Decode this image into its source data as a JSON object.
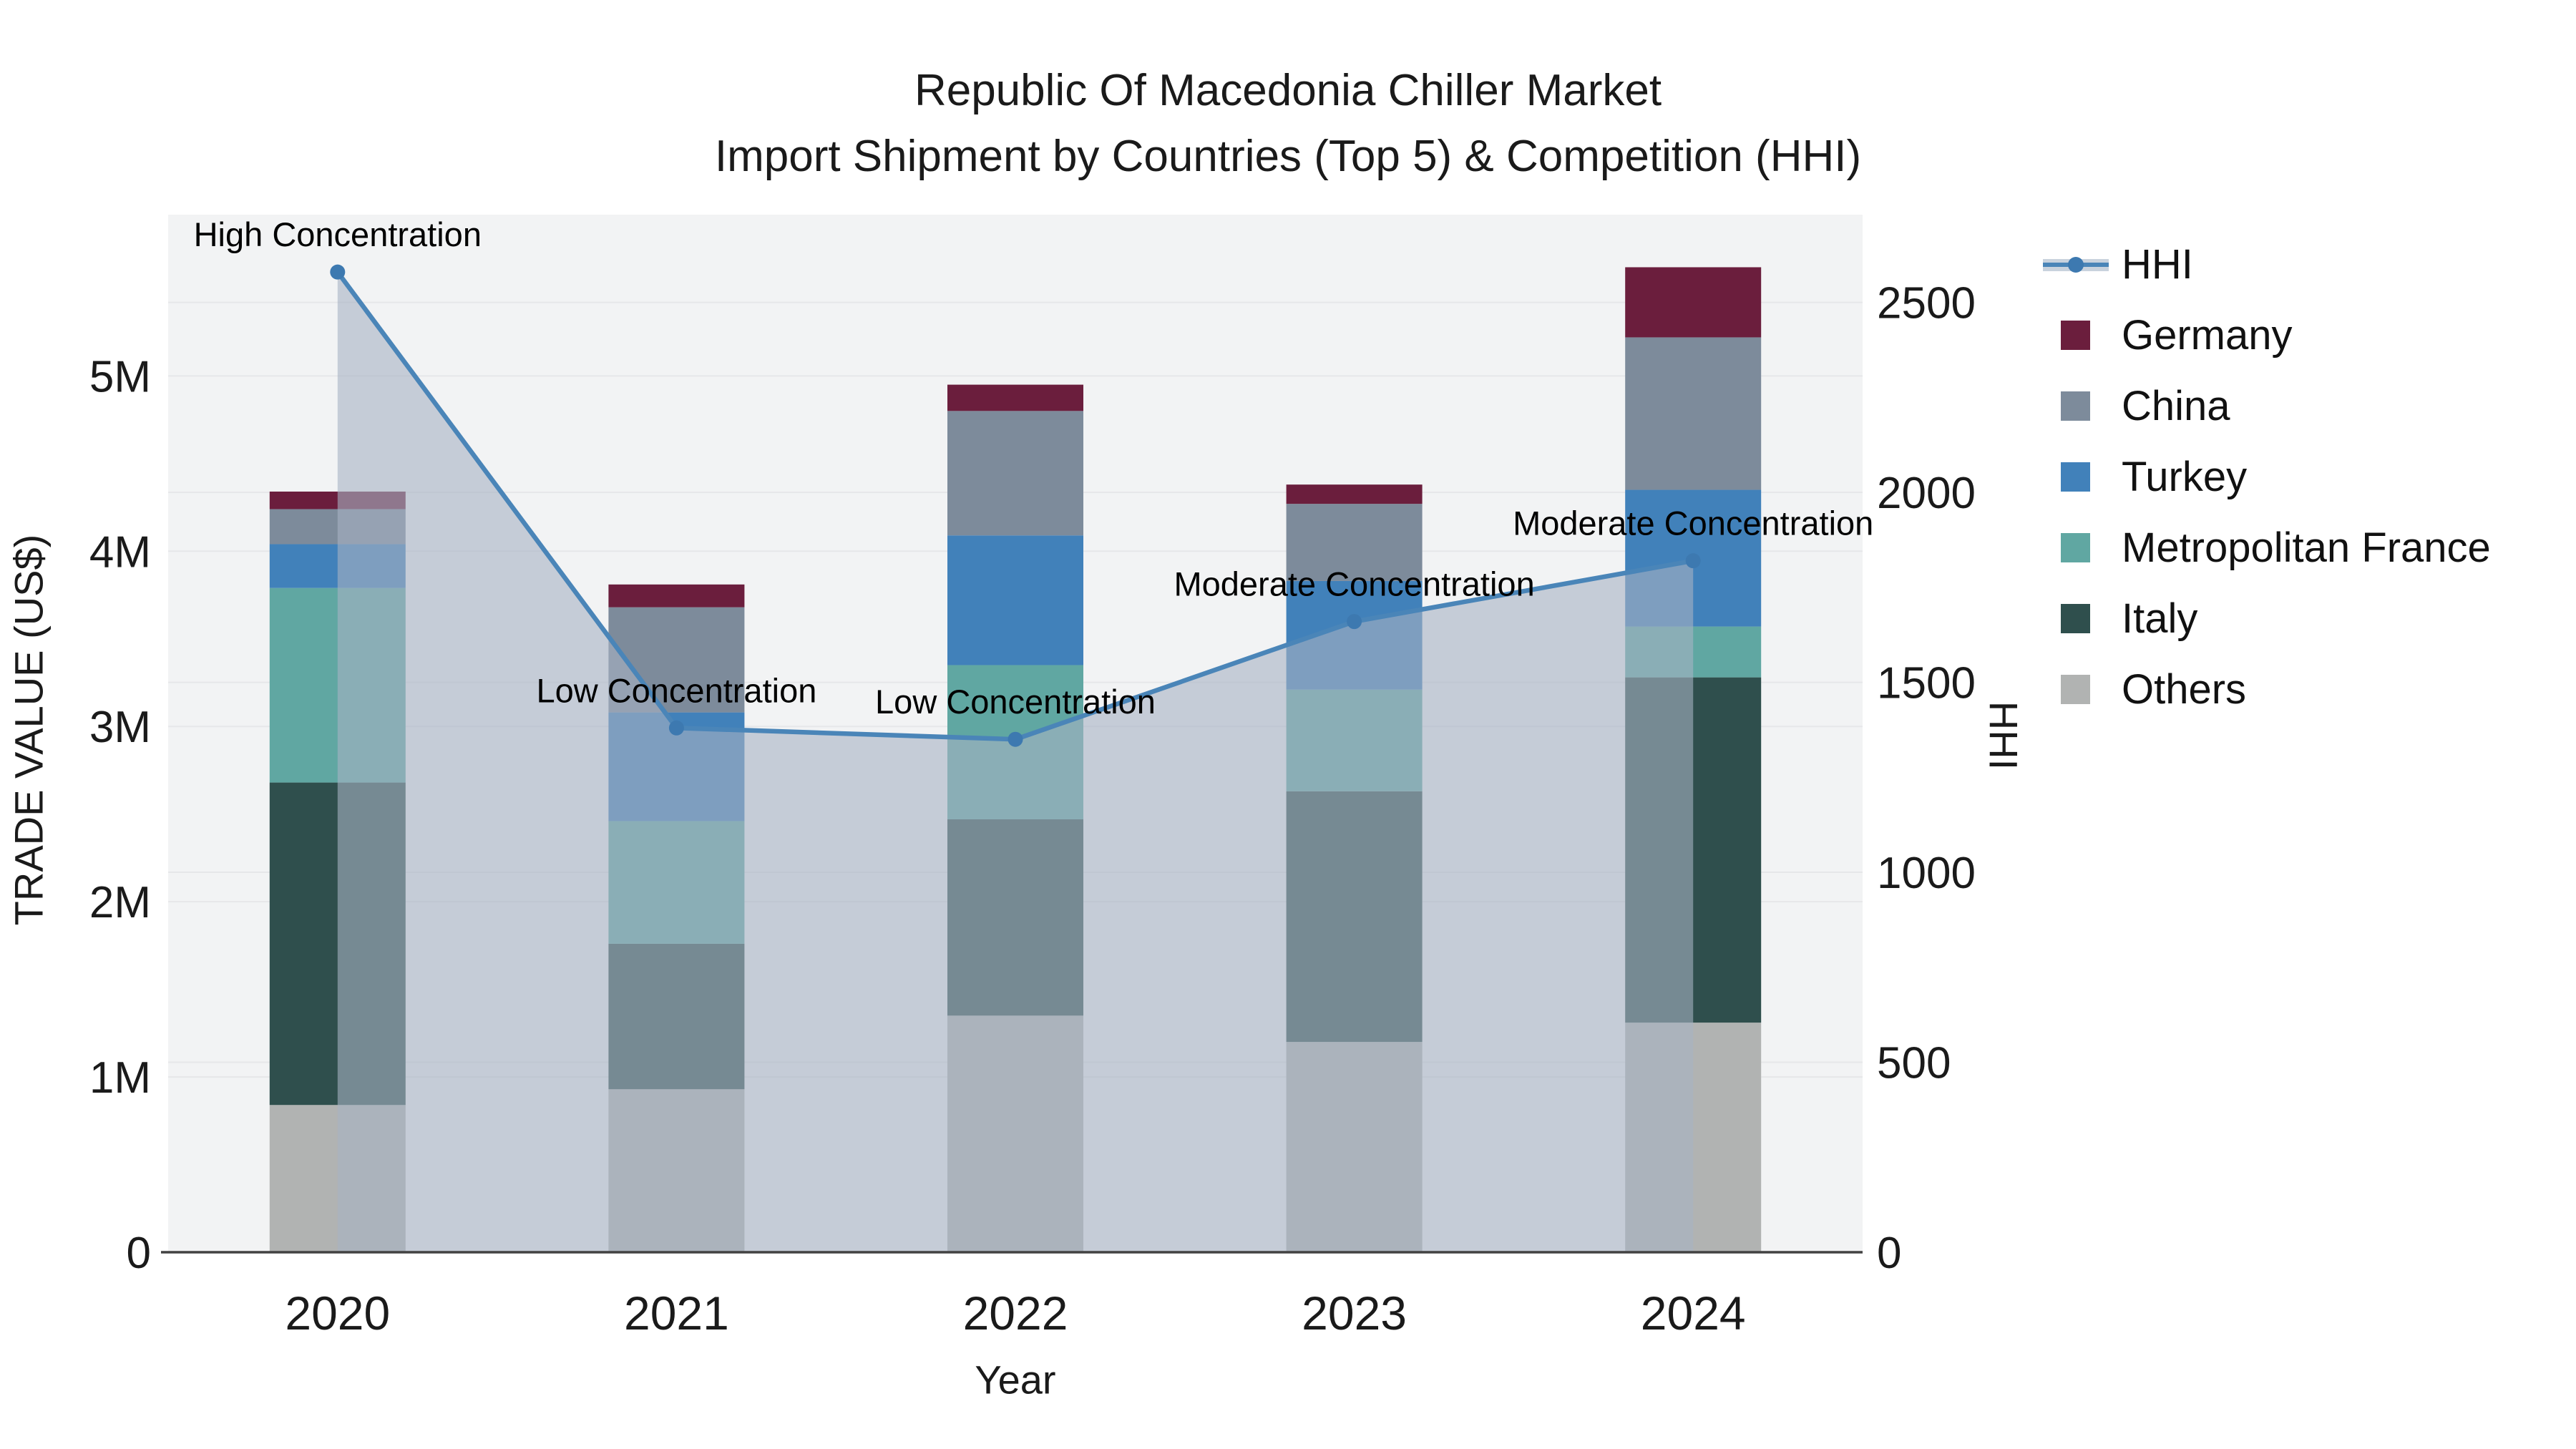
{
  "chart_data": {
    "type": "bar",
    "stacked": true,
    "title": "Republic Of Macedonia Chiller Market",
    "subtitle": "Import Shipment by Countries (Top 5) & Competition (HHI)",
    "categories": [
      "2020",
      "2021",
      "2022",
      "2023",
      "2024"
    ],
    "xlabel": "Year",
    "unit": "US$ millions",
    "y_left": {
      "title": "TRADE VALUE (US$)",
      "tick_values": [
        0,
        1,
        2,
        3,
        4,
        5
      ],
      "tick_labels": [
        "0",
        "1M",
        "2M",
        "3M",
        "4M",
        "5M"
      ],
      "max": 5.92
    },
    "y_right": {
      "title": "HHI",
      "tick_values": [
        0,
        500,
        1000,
        1500,
        2000,
        2500
      ],
      "tick_labels": [
        "0",
        "500",
        "1000",
        "1500",
        "2000",
        "2500"
      ],
      "max": 2731
    },
    "series": [
      {
        "name": "Others",
        "color": "#b1b3b2",
        "values": [
          0.84,
          0.93,
          1.35,
          1.2,
          1.31
        ]
      },
      {
        "name": "Italy",
        "color": "#2f4f4d",
        "values": [
          1.84,
          0.83,
          1.12,
          1.43,
          1.97
        ]
      },
      {
        "name": "Metropolitan France",
        "color": "#60a7a2",
        "values": [
          1.11,
          0.7,
          0.88,
          0.58,
          0.29
        ]
      },
      {
        "name": "Turkey",
        "color": "#4181ba",
        "values": [
          0.25,
          0.62,
          0.74,
          0.62,
          0.78
        ]
      },
      {
        "name": "China",
        "color": "#7d8b9b",
        "values": [
          0.2,
          0.6,
          0.71,
          0.44,
          0.87
        ]
      },
      {
        "name": "Germany",
        "color": "#6b1e3d",
        "values": [
          0.1,
          0.13,
          0.15,
          0.11,
          0.4
        ]
      }
    ],
    "hhi_line": {
      "name": "HHI",
      "axis": "right",
      "values": [
        2580,
        1380,
        1350,
        1660,
        1820
      ],
      "line_color": "#4a85b8",
      "marker_color": "#3d79b0",
      "area_color": "rgba(167,178,195,0.6)",
      "legend_band_color": "#c9d2dd"
    },
    "annotations": [
      "High Concentration",
      "Low Concentration",
      "Low Concentration",
      "Moderate Concentration",
      "Moderate Concentration"
    ],
    "legend_order": [
      "HHI",
      "Germany",
      "China",
      "Turkey",
      "Metropolitan France",
      "Italy",
      "Others"
    ],
    "plot_bg": "#f2f3f4",
    "grid_color": "#e6e7e9",
    "axis_line_color": "#424242",
    "text_color": "#1a1a1a",
    "annotation_color": "#000000",
    "legend_position": "right",
    "grid": true
  }
}
